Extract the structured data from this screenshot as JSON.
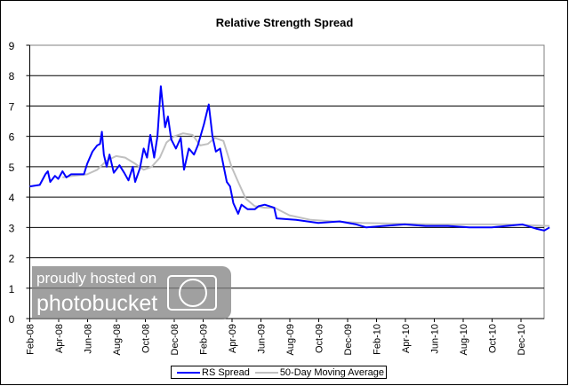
{
  "chart_data": {
    "type": "line",
    "title": "Relative Strength Spread",
    "xlabel": "",
    "ylabel": "",
    "ylim": [
      0,
      9
    ],
    "yticks": [
      "0",
      "1",
      "2",
      "3",
      "4",
      "5",
      "6",
      "7",
      "8",
      "9"
    ],
    "xticks": [
      "Feb-08",
      "Apr-08",
      "Jun-08",
      "Aug-08",
      "Oct-08",
      "Dec-08",
      "Feb-09",
      "Apr-09",
      "Jun-09",
      "Aug-09",
      "Oct-09",
      "Dec-09",
      "Feb-10",
      "Apr-10",
      "Jun-10",
      "Aug-10",
      "Oct-10",
      "Dec-10"
    ],
    "xlim": [
      "2008-02-01",
      "2011-01-31"
    ],
    "grid": true,
    "legend_position": "bottom",
    "series": [
      {
        "name": "RS Spread",
        "color": "#0000ff",
        "points": [
          [
            "2008-02-01",
            4.35
          ],
          [
            "2008-02-22",
            4.4
          ],
          [
            "2008-03-05",
            4.75
          ],
          [
            "2008-03-10",
            4.85
          ],
          [
            "2008-03-15",
            4.5
          ],
          [
            "2008-03-25",
            4.7
          ],
          [
            "2008-04-01",
            4.6
          ],
          [
            "2008-04-10",
            4.85
          ],
          [
            "2008-04-18",
            4.65
          ],
          [
            "2008-04-28",
            4.75
          ],
          [
            "2008-05-12",
            4.75
          ],
          [
            "2008-05-25",
            4.75
          ],
          [
            "2008-06-01",
            5.1
          ],
          [
            "2008-06-12",
            5.5
          ],
          [
            "2008-06-22",
            5.7
          ],
          [
            "2008-06-28",
            5.75
          ],
          [
            "2008-07-02",
            6.15
          ],
          [
            "2008-07-06",
            5.4
          ],
          [
            "2008-07-12",
            5.0
          ],
          [
            "2008-07-18",
            5.4
          ],
          [
            "2008-07-27",
            4.8
          ],
          [
            "2008-08-08",
            5.05
          ],
          [
            "2008-08-18",
            4.8
          ],
          [
            "2008-08-27",
            4.55
          ],
          [
            "2008-09-05",
            5.0
          ],
          [
            "2008-09-10",
            4.5
          ],
          [
            "2008-09-20",
            4.95
          ],
          [
            "2008-09-28",
            5.6
          ],
          [
            "2008-10-05",
            5.3
          ],
          [
            "2008-10-12",
            6.05
          ],
          [
            "2008-10-20",
            5.3
          ],
          [
            "2008-10-27",
            6.0
          ],
          [
            "2008-11-03",
            7.65
          ],
          [
            "2008-11-12",
            6.3
          ],
          [
            "2008-11-18",
            6.65
          ],
          [
            "2008-11-25",
            5.9
          ],
          [
            "2008-12-05",
            5.6
          ],
          [
            "2008-12-15",
            5.95
          ],
          [
            "2008-12-22",
            4.9
          ],
          [
            "2009-01-01",
            5.6
          ],
          [
            "2009-01-12",
            5.4
          ],
          [
            "2009-01-20",
            5.7
          ],
          [
            "2009-02-02",
            6.4
          ],
          [
            "2009-02-12",
            7.05
          ],
          [
            "2009-02-20",
            6.0
          ],
          [
            "2009-02-27",
            5.5
          ],
          [
            "2009-03-08",
            5.6
          ],
          [
            "2009-03-15",
            5.05
          ],
          [
            "2009-03-22",
            4.5
          ],
          [
            "2009-03-29",
            4.35
          ],
          [
            "2009-04-05",
            3.8
          ],
          [
            "2009-04-15",
            3.45
          ],
          [
            "2009-04-22",
            3.75
          ],
          [
            "2009-05-05",
            3.6
          ],
          [
            "2009-05-20",
            3.6
          ],
          [
            "2009-05-28",
            3.7
          ],
          [
            "2009-06-10",
            3.75
          ],
          [
            "2009-06-30",
            3.65
          ],
          [
            "2009-07-05",
            3.3
          ],
          [
            "2009-08-15",
            3.25
          ],
          [
            "2009-10-01",
            3.15
          ],
          [
            "2009-11-15",
            3.2
          ],
          [
            "2009-12-20",
            3.1
          ],
          [
            "2010-01-10",
            3.0
          ],
          [
            "2010-02-15",
            3.05
          ],
          [
            "2010-04-01",
            3.1
          ],
          [
            "2010-05-15",
            3.05
          ],
          [
            "2010-07-01",
            3.05
          ],
          [
            "2010-08-15",
            3.0
          ],
          [
            "2010-10-01",
            3.0
          ],
          [
            "2010-11-01",
            3.05
          ],
          [
            "2010-12-05",
            3.1
          ],
          [
            "2011-01-05",
            2.95
          ],
          [
            "2011-01-20",
            2.9
          ],
          [
            "2011-01-31",
            3.0
          ]
        ]
      },
      {
        "name": "50-Day Moving Average",
        "color": "#c0c0c0",
        "points": [
          [
            "2008-04-10",
            4.65
          ],
          [
            "2008-05-01",
            4.7
          ],
          [
            "2008-06-01",
            4.75
          ],
          [
            "2008-06-22",
            4.9
          ],
          [
            "2008-07-12",
            5.2
          ],
          [
            "2008-08-01",
            5.35
          ],
          [
            "2008-08-20",
            5.3
          ],
          [
            "2008-09-10",
            5.1
          ],
          [
            "2008-09-28",
            4.9
          ],
          [
            "2008-10-15",
            5.0
          ],
          [
            "2008-11-01",
            5.3
          ],
          [
            "2008-11-15",
            5.8
          ],
          [
            "2008-12-01",
            6.0
          ],
          [
            "2008-12-20",
            6.1
          ],
          [
            "2009-01-09",
            6.05
          ],
          [
            "2009-01-25",
            5.7
          ],
          [
            "2009-02-10",
            5.75
          ],
          [
            "2009-02-25",
            5.95
          ],
          [
            "2009-03-15",
            5.85
          ],
          [
            "2009-04-01",
            5.0
          ],
          [
            "2009-04-15",
            4.5
          ],
          [
            "2009-05-01",
            3.95
          ],
          [
            "2009-05-20",
            3.7
          ],
          [
            "2009-06-10",
            3.65
          ],
          [
            "2009-07-01",
            3.65
          ],
          [
            "2009-08-01",
            3.4
          ],
          [
            "2009-09-15",
            3.25
          ],
          [
            "2009-11-01",
            3.2
          ],
          [
            "2010-01-01",
            3.15
          ],
          [
            "2010-06-01",
            3.1
          ],
          [
            "2010-11-01",
            3.1
          ],
          [
            "2011-01-31",
            3.05
          ]
        ]
      }
    ]
  },
  "watermark": {
    "line1": "proudly hosted on",
    "line2": "photobucket"
  }
}
